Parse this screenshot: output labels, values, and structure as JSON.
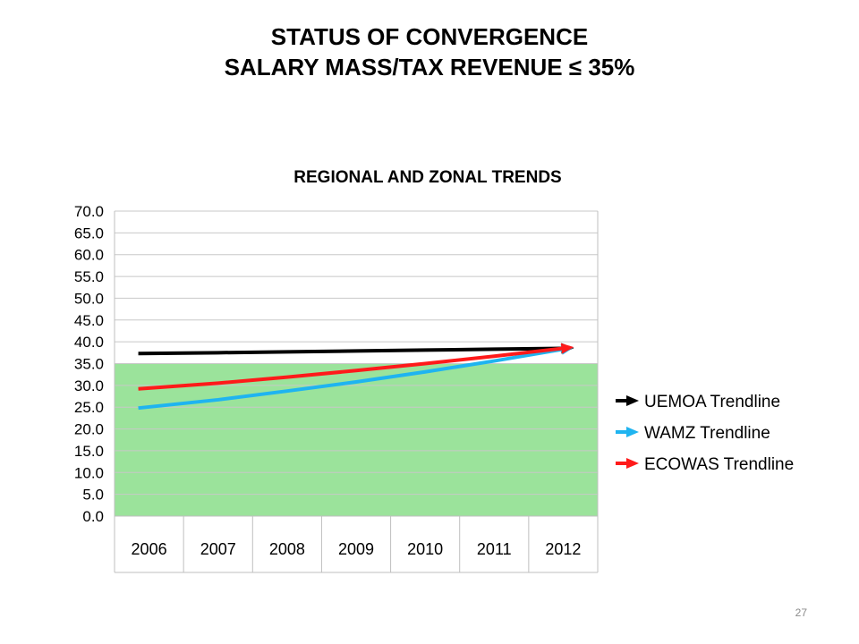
{
  "slide": {
    "title_line1": "STATUS OF CONVERGENCE",
    "title_line2": "SALARY MASS/TAX REVENUE ≤ 35%",
    "page_number": "27"
  },
  "colors": {
    "threshold_fill": "#9be39b",
    "uemoa": "#000000",
    "wamz": "#1fb4f0",
    "ecowas": "#ff1a1a",
    "grid": "#c8c8c8"
  },
  "chart_data": {
    "type": "line",
    "title": "REGIONAL AND ZONAL TRENDS",
    "categories": [
      "2006",
      "2007",
      "2008",
      "2009",
      "2010",
      "2011",
      "2012"
    ],
    "ylim": [
      0,
      70
    ],
    "ytick_step": 5,
    "ytick_labels": [
      "70.0",
      "65.0",
      "60.0",
      "55.0",
      "50.0",
      "45.0",
      "40.0",
      "35.0",
      "30.0",
      "25.0",
      "20.0",
      "15.0",
      "10.0",
      "5.0",
      "0.0"
    ],
    "grid": true,
    "legend_position": "right",
    "threshold": {
      "value": 35,
      "fill": "below"
    },
    "series": [
      {
        "name": "UEMOA Trendline",
        "color": "#000000",
        "values": [
          37.3,
          37.5,
          37.7,
          37.9,
          38.1,
          38.3,
          38.5
        ]
      },
      {
        "name": "WAMZ Trendline",
        "color": "#1fb4f0",
        "values": [
          24.8,
          26.7,
          28.7,
          30.8,
          33.1,
          35.6,
          38.3
        ]
      },
      {
        "name": "ECOWAS Trendline",
        "color": "#ff1a1a",
        "values": [
          29.2,
          30.5,
          31.9,
          33.4,
          35.0,
          36.7,
          38.5
        ]
      }
    ]
  }
}
